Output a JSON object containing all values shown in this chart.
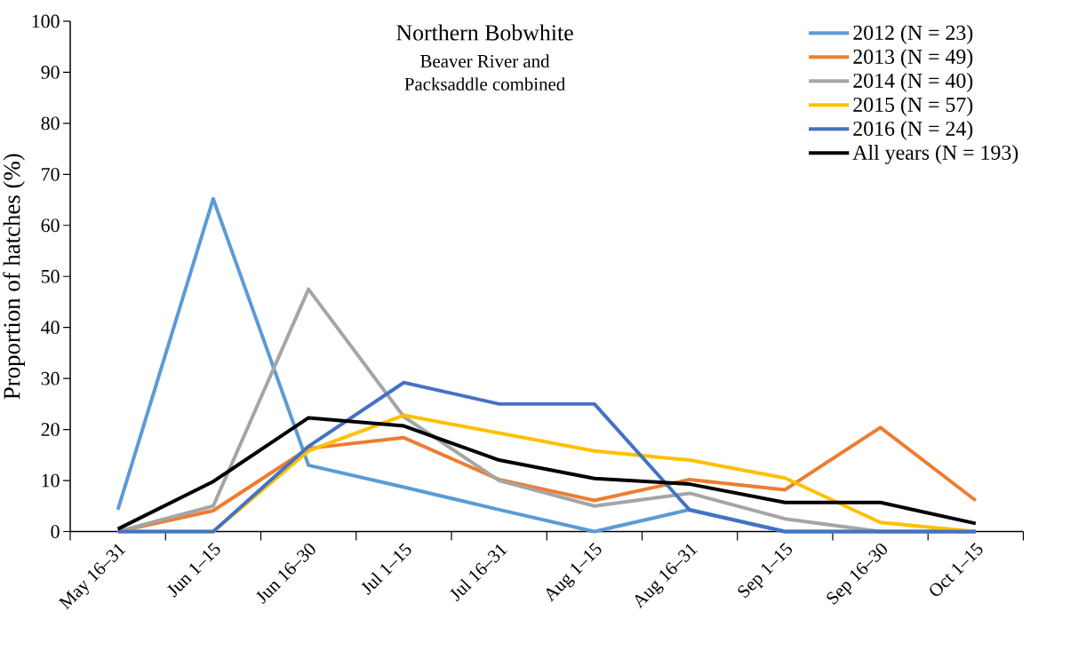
{
  "chart_data": {
    "type": "line",
    "title": "Northern Bobwhite",
    "subtitle": "Beaver River and Packsaddle combined",
    "ylabel": "Proportion of hatches (%)",
    "categories": [
      "May 16–31",
      "Jun 1–15",
      "Jun 16–30",
      "Jul 1–15",
      "Jul 16–31",
      "Aug 1–15",
      "Aug 16–31",
      "Sep 1–15",
      "Sep 16–30",
      "Oct 1–15"
    ],
    "series": [
      {
        "name": "2012 (N = 23)",
        "color": "#5b9bd5",
        "values": [
          4.3,
          65.2,
          13.0,
          8.7,
          4.3,
          0,
          4.3,
          0,
          0,
          0
        ]
      },
      {
        "name": "2013 (N = 49)",
        "color": "#ed7d31",
        "values": [
          0,
          4.1,
          16.3,
          18.4,
          10.2,
          6.1,
          10.2,
          8.2,
          20.4,
          6.1
        ]
      },
      {
        "name": "2014 (N = 40)",
        "color": "#a5a5a5",
        "values": [
          0,
          5.0,
          47.5,
          22.5,
          10.0,
          5.0,
          7.5,
          2.5,
          0,
          0
        ]
      },
      {
        "name": "2015 (N = 57)",
        "color": "#ffc000",
        "values": [
          0,
          0,
          15.8,
          22.8,
          19.3,
          15.8,
          14.0,
          10.5,
          1.8,
          0
        ]
      },
      {
        "name": "2016 (N = 24)",
        "color": "#4472c4",
        "values": [
          0,
          0,
          16.7,
          29.2,
          25.0,
          25.0,
          4.2,
          0,
          0,
          0
        ]
      },
      {
        "name": "All years (N = 193)",
        "color": "#000000",
        "values": [
          0.5,
          9.8,
          22.3,
          20.7,
          14.0,
          10.4,
          9.3,
          5.7,
          5.7,
          1.6
        ]
      }
    ],
    "ylim": [
      0,
      100
    ],
    "yticks": [
      0,
      10,
      20,
      30,
      40,
      50,
      60,
      70,
      80,
      90,
      100
    ],
    "grid": false,
    "legend": "top right",
    "marker": "none",
    "line_style": "solid"
  }
}
